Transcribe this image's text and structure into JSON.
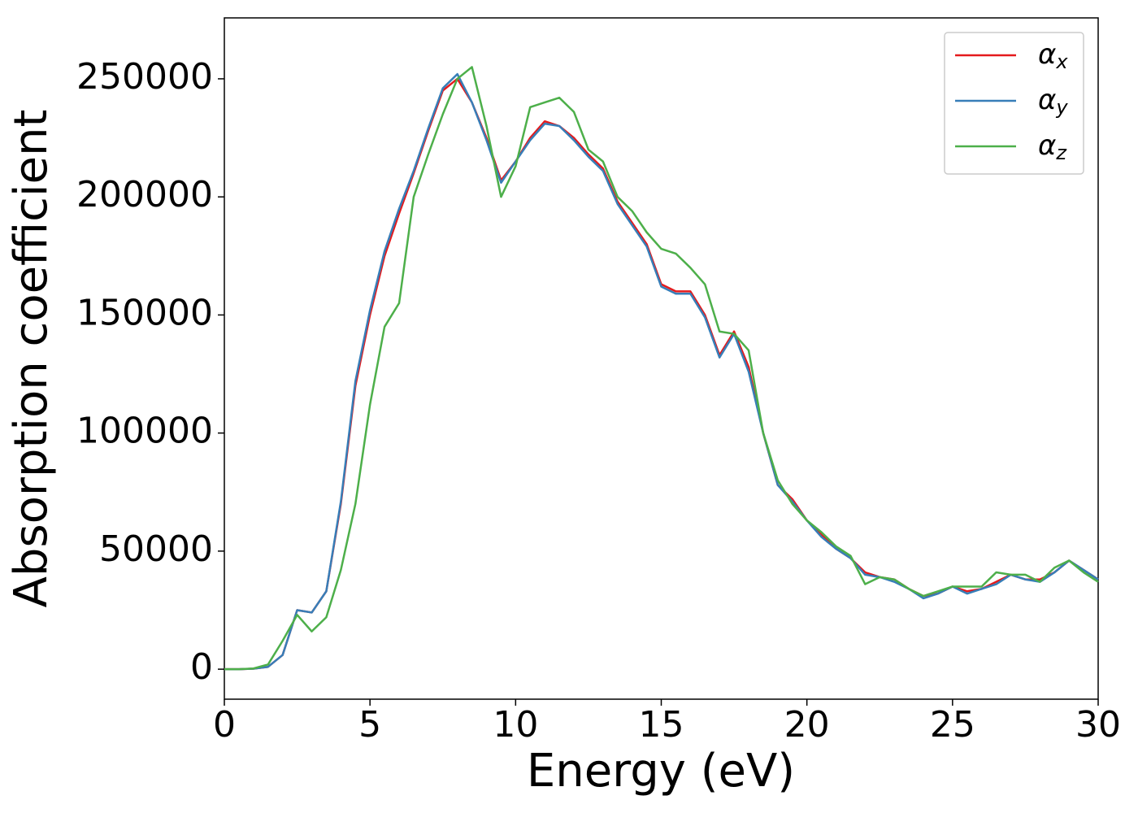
{
  "chart_data": {
    "type": "line",
    "xlabel": "Energy (eV)",
    "ylabel": "Absorption coefficient",
    "x": [
      0,
      0.5,
      1,
      1.5,
      2,
      2.5,
      3,
      3.5,
      4,
      4.5,
      5,
      5.5,
      6,
      6.5,
      7,
      7.5,
      8,
      8.5,
      9,
      9.5,
      10,
      10.5,
      11,
      11.5,
      12,
      12.5,
      13,
      13.5,
      14,
      14.5,
      15,
      15.5,
      16,
      16.5,
      17,
      17.5,
      18,
      18.5,
      19,
      19.5,
      20,
      20.5,
      21,
      21.5,
      22,
      22.5,
      23,
      23.5,
      24,
      24.5,
      25,
      25.5,
      26,
      26.5,
      27,
      27.5,
      28,
      28.5,
      29,
      29.5,
      30
    ],
    "series": [
      {
        "name": "αx",
        "color": "#e41a1c",
        "values": [
          0,
          0,
          200,
          1000,
          6000,
          25000,
          24000,
          33000,
          70000,
          120000,
          150000,
          175000,
          193000,
          210000,
          228000,
          245000,
          250000,
          240000,
          225000,
          207000,
          215000,
          225000,
          232000,
          230000,
          225000,
          218000,
          212000,
          198000,
          189000,
          180000,
          163000,
          160000,
          160000,
          150000,
          133000,
          143000,
          128000,
          100000,
          78000,
          72000,
          63000,
          57000,
          51000,
          47000,
          41000,
          39000,
          38000,
          34000,
          31000,
          32000,
          35000,
          33000,
          34000,
          37000,
          40000,
          38000,
          38000,
          41000,
          46000,
          42000,
          38000
        ]
      },
      {
        "name": "αy",
        "color": "#377eb8",
        "values": [
          0,
          0,
          200,
          1000,
          6000,
          25000,
          24000,
          33000,
          71000,
          122000,
          152000,
          177000,
          195000,
          211000,
          229000,
          246000,
          252000,
          240000,
          224000,
          206000,
          215000,
          224000,
          231000,
          230000,
          224000,
          217000,
          211000,
          197000,
          188000,
          179000,
          162000,
          159000,
          159000,
          149000,
          132000,
          142000,
          126000,
          100000,
          78000,
          71000,
          63000,
          56000,
          51000,
          47000,
          40000,
          39000,
          37000,
          34000,
          30000,
          32000,
          35000,
          32000,
          34000,
          36000,
          40000,
          38000,
          37000,
          41000,
          46000,
          42000,
          38000
        ]
      },
      {
        "name": "αz",
        "color": "#4daf4a",
        "values": [
          0,
          0,
          300,
          2000,
          12000,
          23000,
          16000,
          22000,
          42000,
          70000,
          112000,
          145000,
          155000,
          200000,
          218000,
          235000,
          250000,
          255000,
          230000,
          200000,
          213000,
          238000,
          240000,
          242000,
          236000,
          220000,
          215000,
          200000,
          194000,
          185000,
          178000,
          176000,
          170000,
          163000,
          143000,
          142000,
          135000,
          100000,
          80000,
          70000,
          63000,
          58000,
          52000,
          48000,
          36000,
          39000,
          38000,
          34000,
          31000,
          33000,
          35000,
          35000,
          35000,
          41000,
          40000,
          40000,
          37000,
          43000,
          46000,
          41000,
          37000
        ]
      }
    ],
    "xlim": [
      0,
      30
    ],
    "ylim": [
      -12700,
      275800
    ],
    "xticks": [
      0,
      5,
      10,
      15,
      20,
      25,
      30
    ],
    "yticks": [
      0,
      50000,
      100000,
      150000,
      200000,
      250000
    ],
    "grid": false,
    "legend": "upper right"
  }
}
